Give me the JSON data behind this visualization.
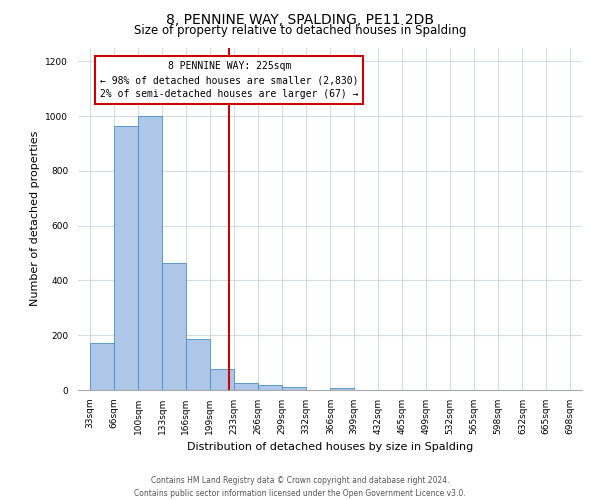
{
  "title": "8, PENNINE WAY, SPALDING, PE11 2DB",
  "subtitle": "Size of property relative to detached houses in Spalding",
  "xlabel": "Distribution of detached houses by size in Spalding",
  "ylabel": "Number of detached properties",
  "bar_edges": [
    33,
    66,
    100,
    133,
    166,
    199,
    233,
    266,
    299,
    332,
    366,
    399,
    432,
    465,
    499,
    532,
    565,
    598,
    632,
    665,
    698
  ],
  "bar_heights": [
    170,
    965,
    1000,
    465,
    185,
    75,
    25,
    18,
    10,
    0,
    8,
    0,
    0,
    0,
    0,
    0,
    0,
    0,
    0,
    0
  ],
  "bar_color": "#aec6e8",
  "bar_edge_color": "#4a90c4",
  "property_line_x": 225,
  "property_line_color": "#cc0000",
  "annotation_line1": "8 PENNINE WAY: 225sqm",
  "annotation_line2": "← 98% of detached houses are smaller (2,830)",
  "annotation_line3": "2% of semi-detached houses are larger (67) →",
  "annotation_box_color": "#cc0000",
  "ylim": [
    0,
    1250
  ],
  "yticks": [
    0,
    200,
    400,
    600,
    800,
    1000,
    1200
  ],
  "tick_labels": [
    "33sqm",
    "66sqm",
    "100sqm",
    "133sqm",
    "166sqm",
    "199sqm",
    "233sqm",
    "266sqm",
    "299sqm",
    "332sqm",
    "366sqm",
    "399sqm",
    "432sqm",
    "465sqm",
    "499sqm",
    "532sqm",
    "565sqm",
    "598sqm",
    "632sqm",
    "665sqm",
    "698sqm"
  ],
  "footer_line1": "Contains HM Land Registry data © Crown copyright and database right 2024.",
  "footer_line2": "Contains public sector information licensed under the Open Government Licence v3.0.",
  "grid_color": "#d0dce8",
  "background_color": "#ffffff",
  "title_fontsize": 10,
  "subtitle_fontsize": 8.5,
  "axis_label_fontsize": 8,
  "tick_fontsize": 6.5,
  "footer_fontsize": 5.5,
  "annotation_fontsize": 7
}
